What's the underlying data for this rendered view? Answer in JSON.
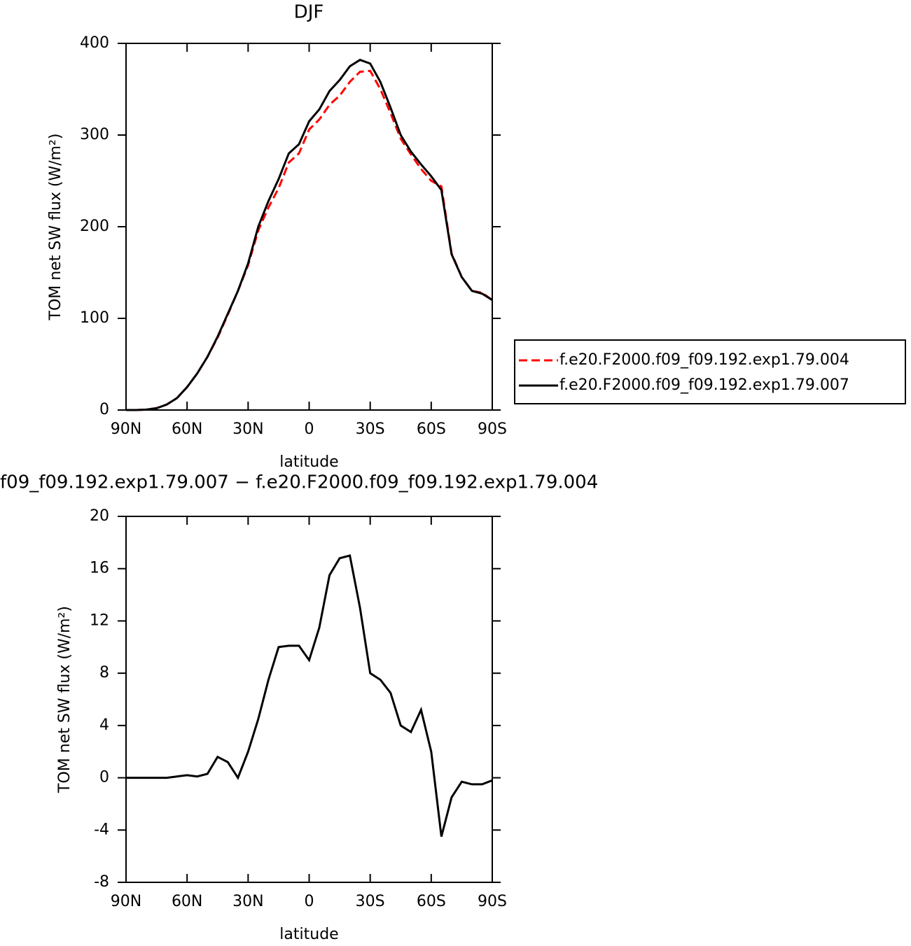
{
  "chart_data": [
    {
      "type": "line",
      "title": "DJF",
      "x_label": "latitude",
      "y_label": "TOM net SW flux (W/m²)",
      "x": [
        90,
        85,
        80,
        75,
        70,
        65,
        60,
        55,
        50,
        45,
        40,
        35,
        30,
        25,
        20,
        15,
        10,
        5,
        0,
        -5,
        -10,
        -15,
        -20,
        -25,
        -30,
        -35,
        -40,
        -45,
        -50,
        -55,
        -60,
        -65,
        -70,
        -75,
        -80,
        -85,
        -90
      ],
      "series": [
        {
          "name": "f.e20.F2000.f09_f09.192.exp1.79.004",
          "color": "#ff0000",
          "dash": true,
          "values": [
            0,
            0,
            0.5,
            2,
            6,
            13,
            25,
            40,
            58,
            79,
            104,
            130,
            158,
            196,
            221,
            242,
            270,
            280,
            306,
            317,
            333,
            343,
            358,
            369,
            370,
            350,
            324,
            296,
            279,
            263,
            250,
            244,
            171,
            145,
            130,
            128,
            120
          ]
        },
        {
          "name": "f.e20.F2000.f09_f09.192.exp1.79.007",
          "color": "#000000",
          "dash": false,
          "values": [
            0,
            0,
            0.5,
            2,
            6,
            13,
            25,
            40,
            58,
            80,
            105,
            130,
            160,
            200,
            228,
            252,
            280,
            290,
            315,
            328,
            348,
            360,
            375,
            382,
            378,
            358,
            330,
            300,
            282,
            268,
            255,
            240,
            170,
            145,
            130,
            127,
            120
          ]
        }
      ],
      "xlim": [
        90,
        -90
      ],
      "xticks": [
        {
          "value": 90,
          "label": "90N"
        },
        {
          "value": 60,
          "label": "60N"
        },
        {
          "value": 30,
          "label": "30N"
        },
        0,
        {
          "value": -30,
          "label": "30S"
        },
        {
          "value": -60,
          "label": "60S"
        },
        {
          "value": -90,
          "label": "90S"
        }
      ],
      "ylim": [
        0,
        400
      ],
      "yticks": [
        0,
        100,
        200,
        300,
        400
      ],
      "legend": "right"
    },
    {
      "type": "line",
      "title": "f09_f09.192.exp1.79.007 − f.e20.F2000.f09_f09.192.exp1.79.004",
      "x_label": "latitude",
      "y_label": "TOM net SW flux (W/m²)",
      "x": [
        90,
        85,
        80,
        75,
        70,
        65,
        60,
        55,
        50,
        45,
        40,
        35,
        30,
        25,
        20,
        15,
        10,
        5,
        0,
        -5,
        -10,
        -15,
        -20,
        -25,
        -30,
        -35,
        -40,
        -45,
        -50,
        -55,
        -60,
        -65,
        -70,
        -75,
        -80,
        -85,
        -90
      ],
      "values": [
        0,
        0,
        0,
        0,
        0,
        0.1,
        0.2,
        0.1,
        0.3,
        1.6,
        1.2,
        0,
        2,
        4.5,
        7.5,
        10,
        10.1,
        10.1,
        9,
        11.5,
        15.5,
        16.8,
        17,
        13,
        8,
        7.5,
        6.5,
        4,
        3.5,
        5.2,
        2,
        -4.5,
        -1.5,
        -0.3,
        -0.5,
        -0.5,
        -0.2
      ],
      "color": "#000000",
      "xlim": [
        90,
        -90
      ],
      "xticks": [
        {
          "value": 90,
          "label": "90N"
        },
        {
          "value": 60,
          "label": "60N"
        },
        {
          "value": 30,
          "label": "30N"
        },
        0,
        {
          "value": -30,
          "label": "30S"
        },
        {
          "value": -60,
          "label": "60S"
        },
        {
          "value": -90,
          "label": "90S"
        }
      ],
      "ylim": [
        -8,
        20
      ],
      "yticks": [
        -8,
        -4,
        0,
        4,
        8,
        12,
        16,
        20
      ]
    }
  ]
}
